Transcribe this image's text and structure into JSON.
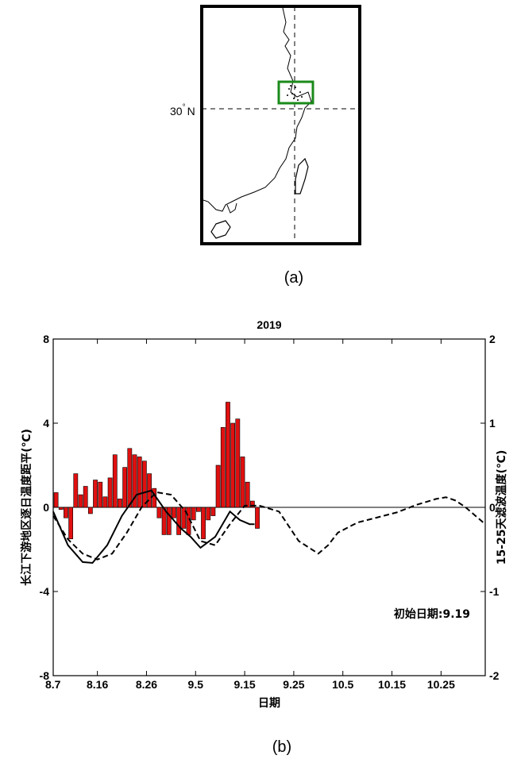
{
  "captions": {
    "a": "(a)",
    "b": "(b)"
  },
  "map": {
    "lat_label": "30",
    "lat_label_degree": "°",
    "lat_label_hemisphere": "N",
    "region_box_color": "#1a8a1a"
  },
  "chart_data": {
    "type": "bar",
    "title": "2019",
    "xlabel": "日期",
    "ylabel_left": "长江下游地区逐日温度距平(℃)",
    "ylabel_right": "15-25天滤波温度(℃)",
    "annotation": "初始日期:9.19",
    "xtick_labels": [
      "8.7",
      "8.16",
      "8.26",
      "9.5",
      "9.15",
      "9.25",
      "10.5",
      "10.15",
      "10.25"
    ],
    "xtick_days": [
      0,
      9,
      19,
      29,
      39,
      49,
      59,
      69,
      79
    ],
    "xlim": [
      0,
      88
    ],
    "left_axis": {
      "ylim": [
        -8,
        8
      ],
      "ticks": [
        8,
        4,
        0,
        -4,
        -8
      ]
    },
    "right_axis": {
      "ylim": [
        -2,
        2
      ],
      "ticks": [
        2,
        1,
        0,
        -1,
        -2
      ]
    },
    "bar_color": "#e01010",
    "series": [
      {
        "name": "",
        "axis": "left",
        "kind": "bar",
        "x": [
          0,
          1,
          2,
          3,
          4,
          5,
          6,
          7,
          8,
          9,
          10,
          11,
          12,
          13,
          14,
          15,
          16,
          17,
          18,
          19,
          20,
          21,
          22,
          23,
          24,
          25,
          26,
          27,
          28,
          29,
          30,
          31,
          32,
          33,
          34,
          35,
          36,
          37,
          38,
          39,
          40,
          41
        ],
        "values": [
          0.7,
          -0.1,
          -0.5,
          -1.5,
          1.6,
          0.6,
          1.0,
          -0.3,
          1.3,
          1.2,
          0.5,
          1.4,
          2.5,
          0.4,
          1.9,
          2.8,
          2.5,
          2.4,
          2.2,
          1.6,
          0.9,
          -0.5,
          -1.3,
          -1.3,
          -0.5,
          -1.3,
          -1.0,
          -1.3,
          -0.6,
          -0.2,
          -1.5,
          -0.6,
          -0.4,
          2.0,
          3.8,
          5.0,
          4.0,
          4.2,
          2.4,
          1.2,
          0.3,
          -1.0
        ]
      },
      {
        "name": "",
        "axis": "right",
        "kind": "line",
        "style": "solid",
        "x": [
          0,
          3,
          6,
          8,
          11,
          14,
          17,
          20,
          23,
          26,
          28,
          30,
          33,
          36,
          38,
          40,
          41
        ],
        "values": [
          -0.05,
          -0.45,
          -0.65,
          -0.66,
          -0.45,
          -0.1,
          0.15,
          0.2,
          -0.05,
          -0.25,
          -0.35,
          -0.48,
          -0.35,
          -0.05,
          -0.15,
          -0.2,
          -0.2
        ]
      },
      {
        "name": "",
        "axis": "right",
        "kind": "line",
        "style": "dashed",
        "x": [
          0,
          3,
          6,
          9,
          12,
          15,
          18,
          21,
          24,
          27,
          30,
          33,
          36,
          39,
          42,
          46,
          50,
          54,
          56,
          58,
          62,
          66,
          70,
          74,
          78,
          80,
          82,
          84,
          86,
          88
        ],
        "values": [
          -0.1,
          -0.38,
          -0.55,
          -0.62,
          -0.55,
          -0.3,
          0.0,
          0.18,
          0.15,
          -0.05,
          -0.4,
          -0.45,
          -0.2,
          0.02,
          0.02,
          -0.05,
          -0.4,
          -0.55,
          -0.45,
          -0.3,
          -0.18,
          -0.12,
          -0.06,
          0.03,
          0.1,
          0.12,
          0.08,
          0.0,
          -0.1,
          -0.2
        ]
      }
    ]
  }
}
